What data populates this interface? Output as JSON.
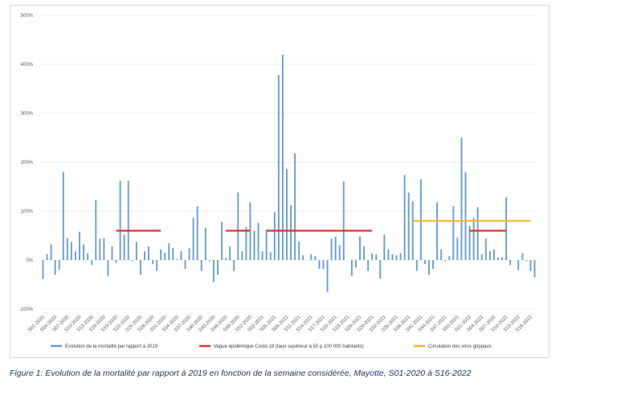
{
  "caption": "Figure 1: Evolution de la mortalité par rapport à 2019 en fonction de la semaine considérée, Mayotte, S01-2020 à S16-2022",
  "colors": {
    "bars": "#6a9fd4",
    "epidemic": "#e0312e",
    "flu": "#f5b52a",
    "grid": "#e6e6e6",
    "axis_text": "#595959"
  },
  "chart_data": {
    "type": "bar",
    "ylim": [
      -100,
      500
    ],
    "ylabel_ticks": [
      "-100%",
      "0%",
      "100%",
      "200%",
      "300%",
      "400%",
      "500%"
    ],
    "ytick_values": [
      -100,
      0,
      100,
      200,
      300,
      400,
      500
    ],
    "grid": true,
    "legend_position": "bottom",
    "x_tick_labels": [
      "S01-2020",
      "S04-2020",
      "S07-2020",
      "S10-2020",
      "S13-2020",
      "S16-2020",
      "S19-2020",
      "S22-2020",
      "S25-2020",
      "S28-2020",
      "S31-2020",
      "S34-2020",
      "S37-2020",
      "S40-2020",
      "S43-2020",
      "S46-2020",
      "S49-2020",
      "S52-2020",
      "S02-2021",
      "S05-2021",
      "S08-2021",
      "S11-2021",
      "S14-2021",
      "S17-2021",
      "S20-2021",
      "S23-2021",
      "S26-2021",
      "S29-2021",
      "S32-2021",
      "S35-2021",
      "S38-2021",
      "S41-2021",
      "S44-2021",
      "S47-2021",
      "S50-2021",
      "S01-2022",
      "S04-2022",
      "S07-2022",
      "S10-2022",
      "S13-2022",
      "S16-2022"
    ],
    "series": [
      {
        "name": "Evolution de la mortalité par rapport à 2019",
        "kind": "bar",
        "values": [
          -38,
          12,
          32,
          -30,
          -20,
          180,
          45,
          37,
          18,
          58,
          32,
          14,
          -10,
          123,
          44,
          45,
          -33,
          28,
          -5,
          162,
          52,
          162,
          -2,
          37,
          -30,
          18,
          28,
          -8,
          -22,
          22,
          15,
          35,
          25,
          2,
          18,
          -18,
          24,
          86,
          110,
          -22,
          66,
          -2,
          -45,
          -30,
          78,
          4,
          28,
          -22,
          138,
          18,
          68,
          118,
          60,
          76,
          18,
          62,
          16,
          98,
          378,
          420,
          186,
          112,
          218,
          38,
          10,
          0,
          12,
          8,
          -18,
          -18,
          -65,
          44,
          48,
          30,
          160,
          0,
          -32,
          -15,
          48,
          28,
          -22,
          14,
          12,
          -38,
          52,
          22,
          12,
          10,
          14,
          174,
          138,
          120,
          -22,
          165,
          -8,
          -30,
          -18,
          118,
          22,
          -2,
          8,
          110,
          46,
          250,
          180,
          70,
          86,
          108,
          12,
          44,
          18,
          22,
          5,
          6,
          128,
          -10,
          0,
          -20,
          14,
          -2,
          -22,
          -35
        ]
      },
      {
        "name": "Vague épidémique Covid-19 (taux supérieur à 50 p.100 000 habitants)",
        "kind": "line",
        "segments": [
          {
            "start": "S19-2020",
            "end": "S30-2020",
            "y": 60
          },
          {
            "start": "S46-2020",
            "end": "S52-2020",
            "y": 60
          },
          {
            "start": "S03-2021",
            "end": "S13-2021",
            "y": 60
          },
          {
            "start": "S13-2021",
            "end": "S29-2021",
            "y": 60
          },
          {
            "start": "S01-2022",
            "end": "S10-2022",
            "y": 60
          }
        ]
      },
      {
        "name": "Circulation des virus grippaux",
        "kind": "line",
        "segments": [
          {
            "start": "S39-2021",
            "end": "S10-2022",
            "y": 80
          },
          {
            "start": "S10-2022",
            "end": "S16-2022",
            "y": 80
          }
        ]
      }
    ]
  }
}
